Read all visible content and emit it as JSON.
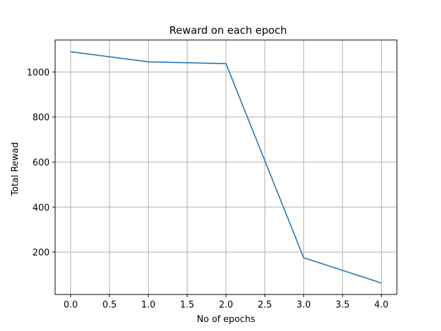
{
  "chart_data": {
    "type": "line",
    "title": "Reward on each epoch",
    "xlabel": "No of epochs",
    "ylabel": "Total Rewad",
    "x": [
      0,
      1,
      2,
      3,
      4
    ],
    "series": [
      {
        "values": [
          1090,
          1045,
          1037,
          175,
          63
        ]
      }
    ],
    "xlim": [
      -0.2,
      4.2
    ],
    "ylim": [
      12,
      1142
    ],
    "xticks": [
      0.0,
      0.5,
      1.0,
      1.5,
      2.0,
      2.5,
      3.0,
      3.5,
      4.0
    ],
    "xtick_labels": [
      "0.0",
      "0.5",
      "1.0",
      "1.5",
      "2.0",
      "2.5",
      "3.0",
      "3.5",
      "4.0"
    ],
    "yticks": [
      200,
      400,
      600,
      800,
      1000
    ],
    "ytick_labels": [
      "200",
      "400",
      "600",
      "800",
      "1000"
    ],
    "grid": true,
    "line_color": "#1f77b4",
    "grid_color": "#b0b0b0"
  }
}
